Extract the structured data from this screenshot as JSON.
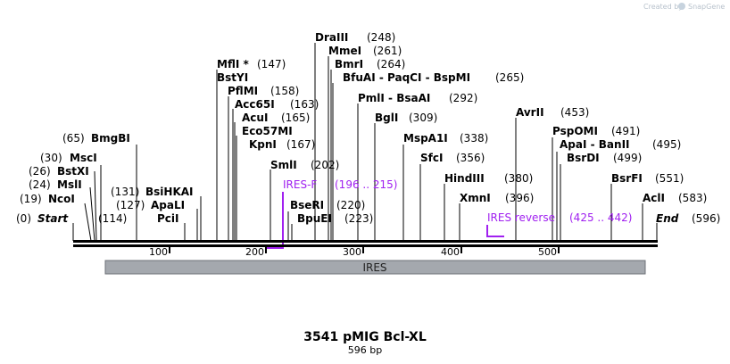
{
  "credit": {
    "text": "Created by",
    "brand": "SnapGene"
  },
  "map": {
    "title": "3541 pMIG Bcl-XL",
    "subtitle": "596 bp",
    "length": 596,
    "ticks": [
      100,
      200,
      300,
      400,
      500
    ],
    "start_label": "Start",
    "end_label": "End",
    "start_pos": "(0)",
    "end_pos": "(596)"
  },
  "sites": [
    {
      "name": "NcoI",
      "pos": "(19)"
    },
    {
      "name": "MslI",
      "pos": "(24)"
    },
    {
      "name": "BstXI",
      "pos": "(26)"
    },
    {
      "name": "MscI",
      "pos": "(30)"
    },
    {
      "name": "BmgBI",
      "pos": "(65)"
    },
    {
      "name": "PciI",
      "pos": "(114)"
    },
    {
      "name": "ApaLI",
      "pos": "(127)"
    },
    {
      "name": "BsiHKAI",
      "pos": "(131)"
    },
    {
      "name": "MflI *",
      "pos": "(147)"
    },
    {
      "name": "BstYI",
      "pos": ""
    },
    {
      "name": "PflMI",
      "pos": "(158)"
    },
    {
      "name": "Acc65I",
      "pos": "(163)"
    },
    {
      "name": "AcuI",
      "pos": "(165)"
    },
    {
      "name": "Eco57MI",
      "pos": ""
    },
    {
      "name": "KpnI",
      "pos": "(167)"
    },
    {
      "name": "SmlI",
      "pos": "(202)"
    },
    {
      "name": "BseRI",
      "pos": "(220)"
    },
    {
      "name": "BpuEI",
      "pos": "(223)"
    },
    {
      "name": "DraIII",
      "pos": "(248)"
    },
    {
      "name": "MmeI",
      "pos": "(261)"
    },
    {
      "name": "BmrI",
      "pos": "(264)"
    },
    {
      "name": "BfuAI - PaqCI - BspMI",
      "pos": "(265)"
    },
    {
      "name": "PmlI - BsaAI",
      "pos": "(292)"
    },
    {
      "name": "BglI",
      "pos": "(309)"
    },
    {
      "name": "MspA1I",
      "pos": "(338)"
    },
    {
      "name": "SfcI",
      "pos": "(356)"
    },
    {
      "name": "HindIII",
      "pos": "(380)"
    },
    {
      "name": "XmnI",
      "pos": "(396)"
    },
    {
      "name": "AvrII",
      "pos": "(453)"
    },
    {
      "name": "PspOMI",
      "pos": "(491)"
    },
    {
      "name": "ApaI - BanII",
      "pos": "(495)"
    },
    {
      "name": "BsrDI",
      "pos": "(499)"
    },
    {
      "name": "BsrFI",
      "pos": "(551)"
    },
    {
      "name": "AclI",
      "pos": "(583)"
    }
  ],
  "primers": [
    {
      "name": "IRES-F",
      "range": "(196 .. 215)"
    },
    {
      "name": "IRES reverse",
      "range": "(425 .. 442)"
    }
  ],
  "features": [
    {
      "name": "IRES"
    }
  ],
  "colors": {
    "primer": "#a020f0",
    "feature": "#a4a8ae",
    "backbone": "#000000"
  }
}
